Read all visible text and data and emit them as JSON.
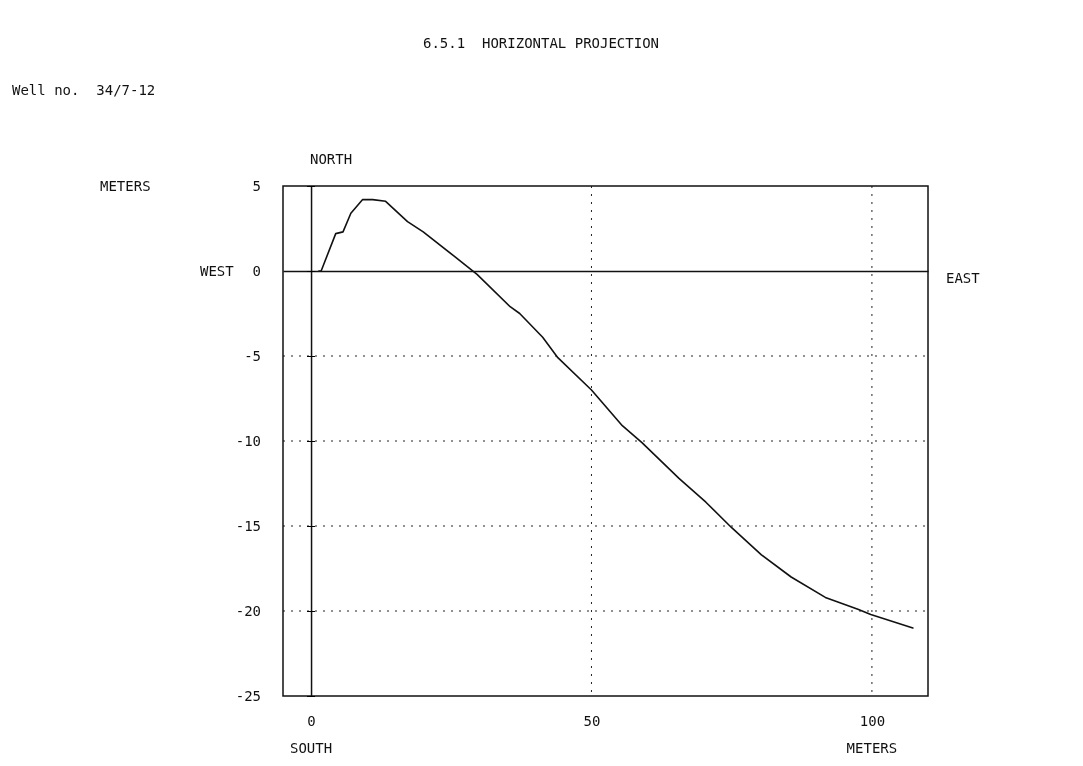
{
  "chart_data": {
    "type": "line",
    "title": "6.5.1  HORIZONTAL PROJECTION",
    "subtitle": "Well no.  34/7-12",
    "xlabel": "METERS",
    "annotations": [
      "NORTH",
      "WEST",
      "EAST",
      "SOUTH",
      "METERS"
    ],
    "x": [
      1.4,
      1.8,
      4.4,
      5.7,
      7.1,
      9.2,
      11,
      13.3,
      17.2,
      20,
      25.4,
      29.6,
      35.5,
      37.2,
      41.3,
      44,
      50,
      55.5,
      59,
      65.6,
      70.4,
      75,
      80.3,
      85.6,
      91.7,
      97.5,
      99.8,
      107.3
    ],
    "series": [
      {
        "color": "#111111",
        "values": [
          0,
          0,
          2.2,
          2.3,
          3.4,
          4.2,
          4.2,
          4.1,
          2.9,
          2.3,
          0.9,
          -0.2,
          -2.1,
          -2.5,
          -3.9,
          -5.1,
          -7.0,
          -9.1,
          -10.1,
          -12.2,
          -13.6,
          -15.1,
          -16.7,
          -18,
          -19.2,
          -19.9,
          -20.2,
          -21
        ]
      }
    ],
    "xlim": [
      -5,
      110
    ],
    "ylim": [
      -25,
      5
    ],
    "xticks": [
      0,
      50,
      100
    ],
    "yticks": [
      5,
      0,
      -5,
      -10,
      -15,
      -20,
      -25
    ],
    "grid": true,
    "marker": "none",
    "line_style": "solid"
  }
}
